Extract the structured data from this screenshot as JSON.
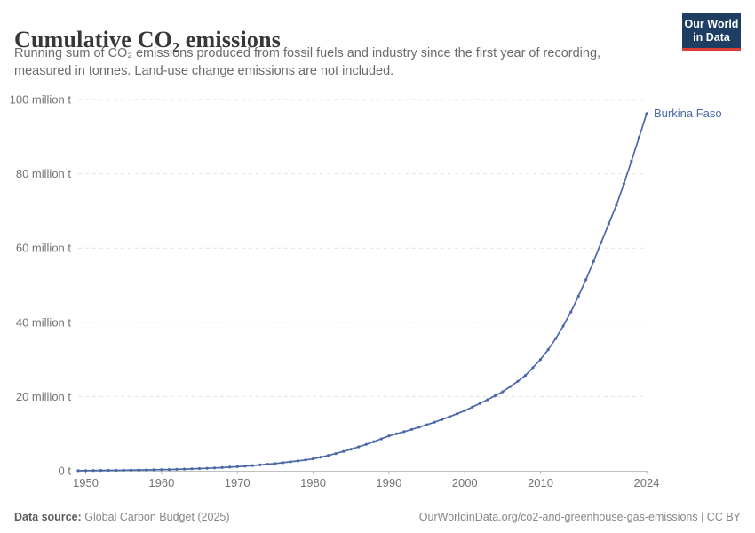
{
  "header": {
    "title": "Cumulative CO₂ emissions",
    "subtitle_line1": "Running sum of CO₂ emissions produced from fossil fuels and industry since the first year of recording,",
    "subtitle_line2": "measured in tonnes. Land-use change emissions are not included."
  },
  "logo": {
    "line1": "Our World",
    "line2": "in Data"
  },
  "footer": {
    "source_label": "Data source:",
    "source_value": "Global Carbon Budget (2025)",
    "right_text": "OurWorldinData.org/co2-and-greenhouse-gas-emissions | CC BY"
  },
  "colors": {
    "line": "#4a68a8",
    "grid": "#e2e2e2",
    "axis": "#c0c0c0",
    "tick": "#b3b3b3",
    "tick_label": "#737373",
    "logo_bg": "#1d3d63",
    "logo_accent": "#dc3f34"
  },
  "chart_data": {
    "type": "line",
    "title": "Cumulative CO₂ emissions",
    "xlabel": "",
    "ylabel": "tonnes",
    "xlim": [
      1949,
      2024
    ],
    "ylim": [
      0,
      100
    ],
    "grid": "dashed-horizontal",
    "legend_position": "end-of-line-label",
    "x_ticks": [
      1950,
      1960,
      1970,
      1980,
      1990,
      2000,
      2010,
      2024
    ],
    "y_ticks": [
      {
        "value": 0,
        "label": "0 t"
      },
      {
        "value": 20,
        "label": "20 million t"
      },
      {
        "value": 40,
        "label": "40 million t"
      },
      {
        "value": 60,
        "label": "60 million t"
      },
      {
        "value": 80,
        "label": "80 million t"
      },
      {
        "value": 100,
        "label": "100 million t"
      }
    ],
    "unit": "million tonnes",
    "series": [
      {
        "name": "Burkina Faso",
        "color": "#4a68a8",
        "points": [
          [
            1949,
            0.02
          ],
          [
            1950,
            0.05
          ],
          [
            1951,
            0.07
          ],
          [
            1952,
            0.09
          ],
          [
            1953,
            0.11
          ],
          [
            1954,
            0.13
          ],
          [
            1955,
            0.16
          ],
          [
            1956,
            0.18
          ],
          [
            1957,
            0.21
          ],
          [
            1958,
            0.24
          ],
          [
            1959,
            0.27
          ],
          [
            1960,
            0.3
          ],
          [
            1961,
            0.34
          ],
          [
            1962,
            0.39
          ],
          [
            1963,
            0.45
          ],
          [
            1964,
            0.52
          ],
          [
            1965,
            0.6
          ],
          [
            1966,
            0.68
          ],
          [
            1967,
            0.77
          ],
          [
            1968,
            0.87
          ],
          [
            1969,
            0.98
          ],
          [
            1970,
            1.1
          ],
          [
            1971,
            1.24
          ],
          [
            1972,
            1.4
          ],
          [
            1973,
            1.57
          ],
          [
            1974,
            1.76
          ],
          [
            1975,
            1.96
          ],
          [
            1976,
            2.18
          ],
          [
            1977,
            2.41
          ],
          [
            1978,
            2.66
          ],
          [
            1979,
            2.92
          ],
          [
            1980,
            3.2
          ],
          [
            1981,
            3.65
          ],
          [
            1982,
            4.13
          ],
          [
            1983,
            4.65
          ],
          [
            1984,
            5.21
          ],
          [
            1985,
            5.81
          ],
          [
            1986,
            6.45
          ],
          [
            1987,
            7.13
          ],
          [
            1988,
            7.85
          ],
          [
            1989,
            8.61
          ],
          [
            1990,
            9.41
          ],
          [
            1991,
            9.97
          ],
          [
            1992,
            10.55
          ],
          [
            1993,
            11.15
          ],
          [
            1994,
            11.77
          ],
          [
            1995,
            12.42
          ],
          [
            1996,
            13.1
          ],
          [
            1997,
            13.82
          ],
          [
            1998,
            14.58
          ],
          [
            1999,
            15.38
          ],
          [
            2000,
            16.2
          ],
          [
            2001,
            17.15
          ],
          [
            2002,
            18.15
          ],
          [
            2003,
            19.15
          ],
          [
            2004,
            20.2
          ],
          [
            2005,
            21.3
          ],
          [
            2006,
            22.7
          ],
          [
            2007,
            24.1
          ],
          [
            2008,
            25.7
          ],
          [
            2009,
            27.8
          ],
          [
            2010,
            30.0
          ],
          [
            2011,
            32.6
          ],
          [
            2012,
            35.6
          ],
          [
            2013,
            39.0
          ],
          [
            2014,
            42.8
          ],
          [
            2015,
            47.0
          ],
          [
            2016,
            51.5
          ],
          [
            2017,
            56.4
          ],
          [
            2018,
            61.5
          ],
          [
            2019,
            66.5
          ],
          [
            2020,
            71.5
          ],
          [
            2021,
            77.3
          ],
          [
            2022,
            83.4
          ],
          [
            2023,
            89.8
          ],
          [
            2024,
            96.2
          ]
        ]
      }
    ]
  }
}
